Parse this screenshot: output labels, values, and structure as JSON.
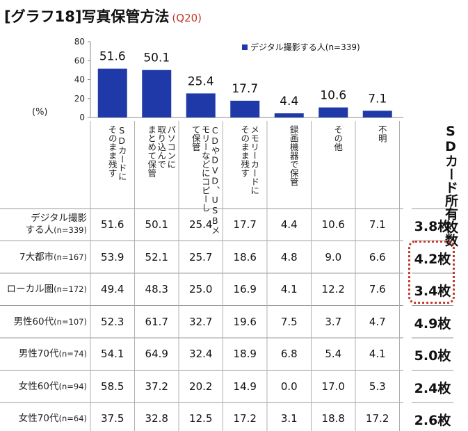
{
  "title": {
    "main": "[グラフ18]写真保管方法",
    "q": "(Q20)"
  },
  "unit_label": "(%)",
  "sd_header": "SDカード所有枚数",
  "categories": [
    [
      "SDカードに",
      "そのまま残す"
    ],
    [
      "パソコンに",
      "取り込んで",
      "まとめて保管"
    ],
    [
      "CDやDVD、USBメ",
      "モリーなどにコピーし",
      "て保管"
    ],
    [
      "メモリーカードに",
      "そのまま残す"
    ],
    [
      "録画機器で保管"
    ],
    [
      "その他"
    ],
    [
      "不明"
    ]
  ],
  "rows": [
    {
      "label1": "デジタル撮影",
      "label2": "する人",
      "n": "(n=339)",
      "values": [
        "51.6",
        "50.1",
        "25.4",
        "17.7",
        "4.4",
        "10.6",
        "7.1"
      ],
      "sd": "3.8枚"
    },
    {
      "label1": "7大都市",
      "n": "(n=167)",
      "values": [
        "53.9",
        "52.1",
        "25.7",
        "18.6",
        "4.8",
        "9.0",
        "6.6"
      ],
      "sd": "4.2枚"
    },
    {
      "label1": "ローカル圏",
      "n": "(n=172)",
      "values": [
        "49.4",
        "48.3",
        "25.0",
        "16.9",
        "4.1",
        "12.2",
        "7.6"
      ],
      "sd": "3.4枚"
    },
    {
      "label1": "男性60代",
      "n": "(n=107)",
      "values": [
        "52.3",
        "61.7",
        "32.7",
        "19.6",
        "7.5",
        "3.7",
        "4.7"
      ],
      "sd": "4.9枚"
    },
    {
      "label1": "男性70代",
      "n": "(n=74)",
      "values": [
        "54.1",
        "64.9",
        "32.4",
        "18.9",
        "6.8",
        "5.4",
        "4.1"
      ],
      "sd": "5.0枚"
    },
    {
      "label1": "女性60代",
      "n": "(n=94)",
      "values": [
        "58.5",
        "37.2",
        "20.2",
        "14.9",
        "0.0",
        "17.0",
        "5.3"
      ],
      "sd": "2.4枚"
    },
    {
      "label1": "女性70代",
      "n": "(n=64)",
      "values": [
        "37.5",
        "32.8",
        "12.5",
        "17.2",
        "3.1",
        "18.8",
        "17.2"
      ],
      "sd": "2.6枚"
    }
  ],
  "chart_data": {
    "type": "bar",
    "categories": [
      "SDカードにそのまま残す",
      "パソコンに取り込んでまとめて保管",
      "CDやDVD、USBメモリーなどにコピーして保管",
      "メモリーカードにそのまま残す",
      "録画機器で保管",
      "その他",
      "不明"
    ],
    "series": [
      {
        "name": "デジタル撮影する人(n=339)",
        "values": [
          51.6,
          50.1,
          25.4,
          17.7,
          4.4,
          10.6,
          7.1
        ]
      }
    ],
    "data_labels": [
      "51.6",
      "50.1",
      "25.4",
      "17.7",
      "4.4",
      "10.6",
      "7.1"
    ],
    "ylim": [
      0,
      80
    ],
    "yticks": [
      0,
      20,
      40,
      60,
      80
    ],
    "grid": false,
    "legend": "top-right",
    "color": "#1f3aa8"
  }
}
